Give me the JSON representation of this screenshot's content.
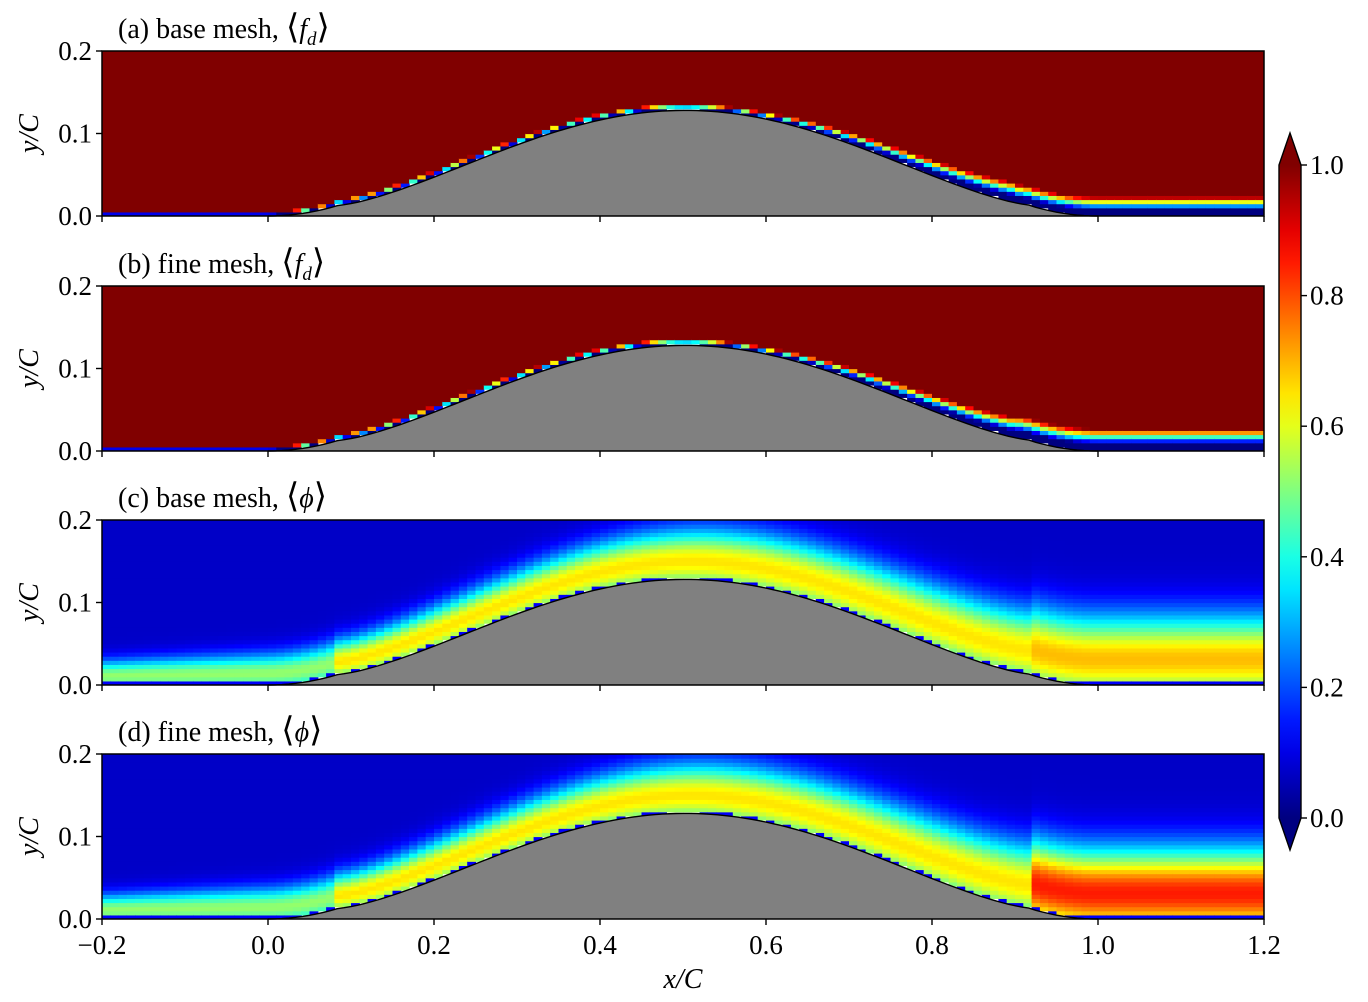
{
  "chart_data": {
    "type": "heatmap",
    "colormap": "jet",
    "panels": [
      {
        "title_prefix": "(a) base mesh, ",
        "quantity": "⟨f_d⟩",
        "q_main": "f",
        "q_sub": "d",
        "field": "fd",
        "mesh": "base",
        "ylabel": "y/C",
        "ylim": [
          0,
          0.2
        ],
        "yticks": [
          "0.0",
          "0.1",
          "0.2"
        ]
      },
      {
        "title_prefix": "(b) fine mesh, ",
        "quantity": "⟨f_d⟩",
        "q_main": "f",
        "q_sub": "d",
        "field": "fd",
        "mesh": "fine",
        "ylabel": "y/C",
        "ylim": [
          0,
          0.2
        ],
        "yticks": [
          "0.0",
          "0.1",
          "0.2"
        ]
      },
      {
        "title_prefix": "(c) base mesh, ",
        "quantity": "⟨ϕ⟩",
        "q_main": "ϕ",
        "q_sub": "",
        "field": "phi",
        "mesh": "base",
        "ylabel": "y/C",
        "ylim": [
          0,
          0.2
        ],
        "yticks": [
          "0.0",
          "0.1",
          "0.2"
        ]
      },
      {
        "title_prefix": "(d) fine mesh, ",
        "quantity": "⟨ϕ⟩",
        "q_main": "ϕ",
        "q_sub": "",
        "field": "phi",
        "mesh": "fine",
        "ylabel": "y/C",
        "ylim": [
          0,
          0.2
        ],
        "yticks": [
          "0.0",
          "0.1",
          "0.2"
        ]
      }
    ],
    "xlabel": "x/C",
    "xlim": [
      -0.2,
      1.2
    ],
    "xticks": [
      "−0.2",
      "0.0",
      "0.2",
      "0.4",
      "0.6",
      "0.8",
      "1.0",
      "1.2"
    ],
    "hump": {
      "x_start": 0.0,
      "x_end": 1.0,
      "peak_x": 0.5,
      "peak_y": 0.128,
      "fill": "#808080"
    },
    "colorbar": {
      "range": [
        0.0,
        1.0
      ],
      "ticks": [
        "0.0",
        "0.2",
        "0.4",
        "0.6",
        "0.8",
        "1.0"
      ],
      "extend": "both"
    }
  }
}
